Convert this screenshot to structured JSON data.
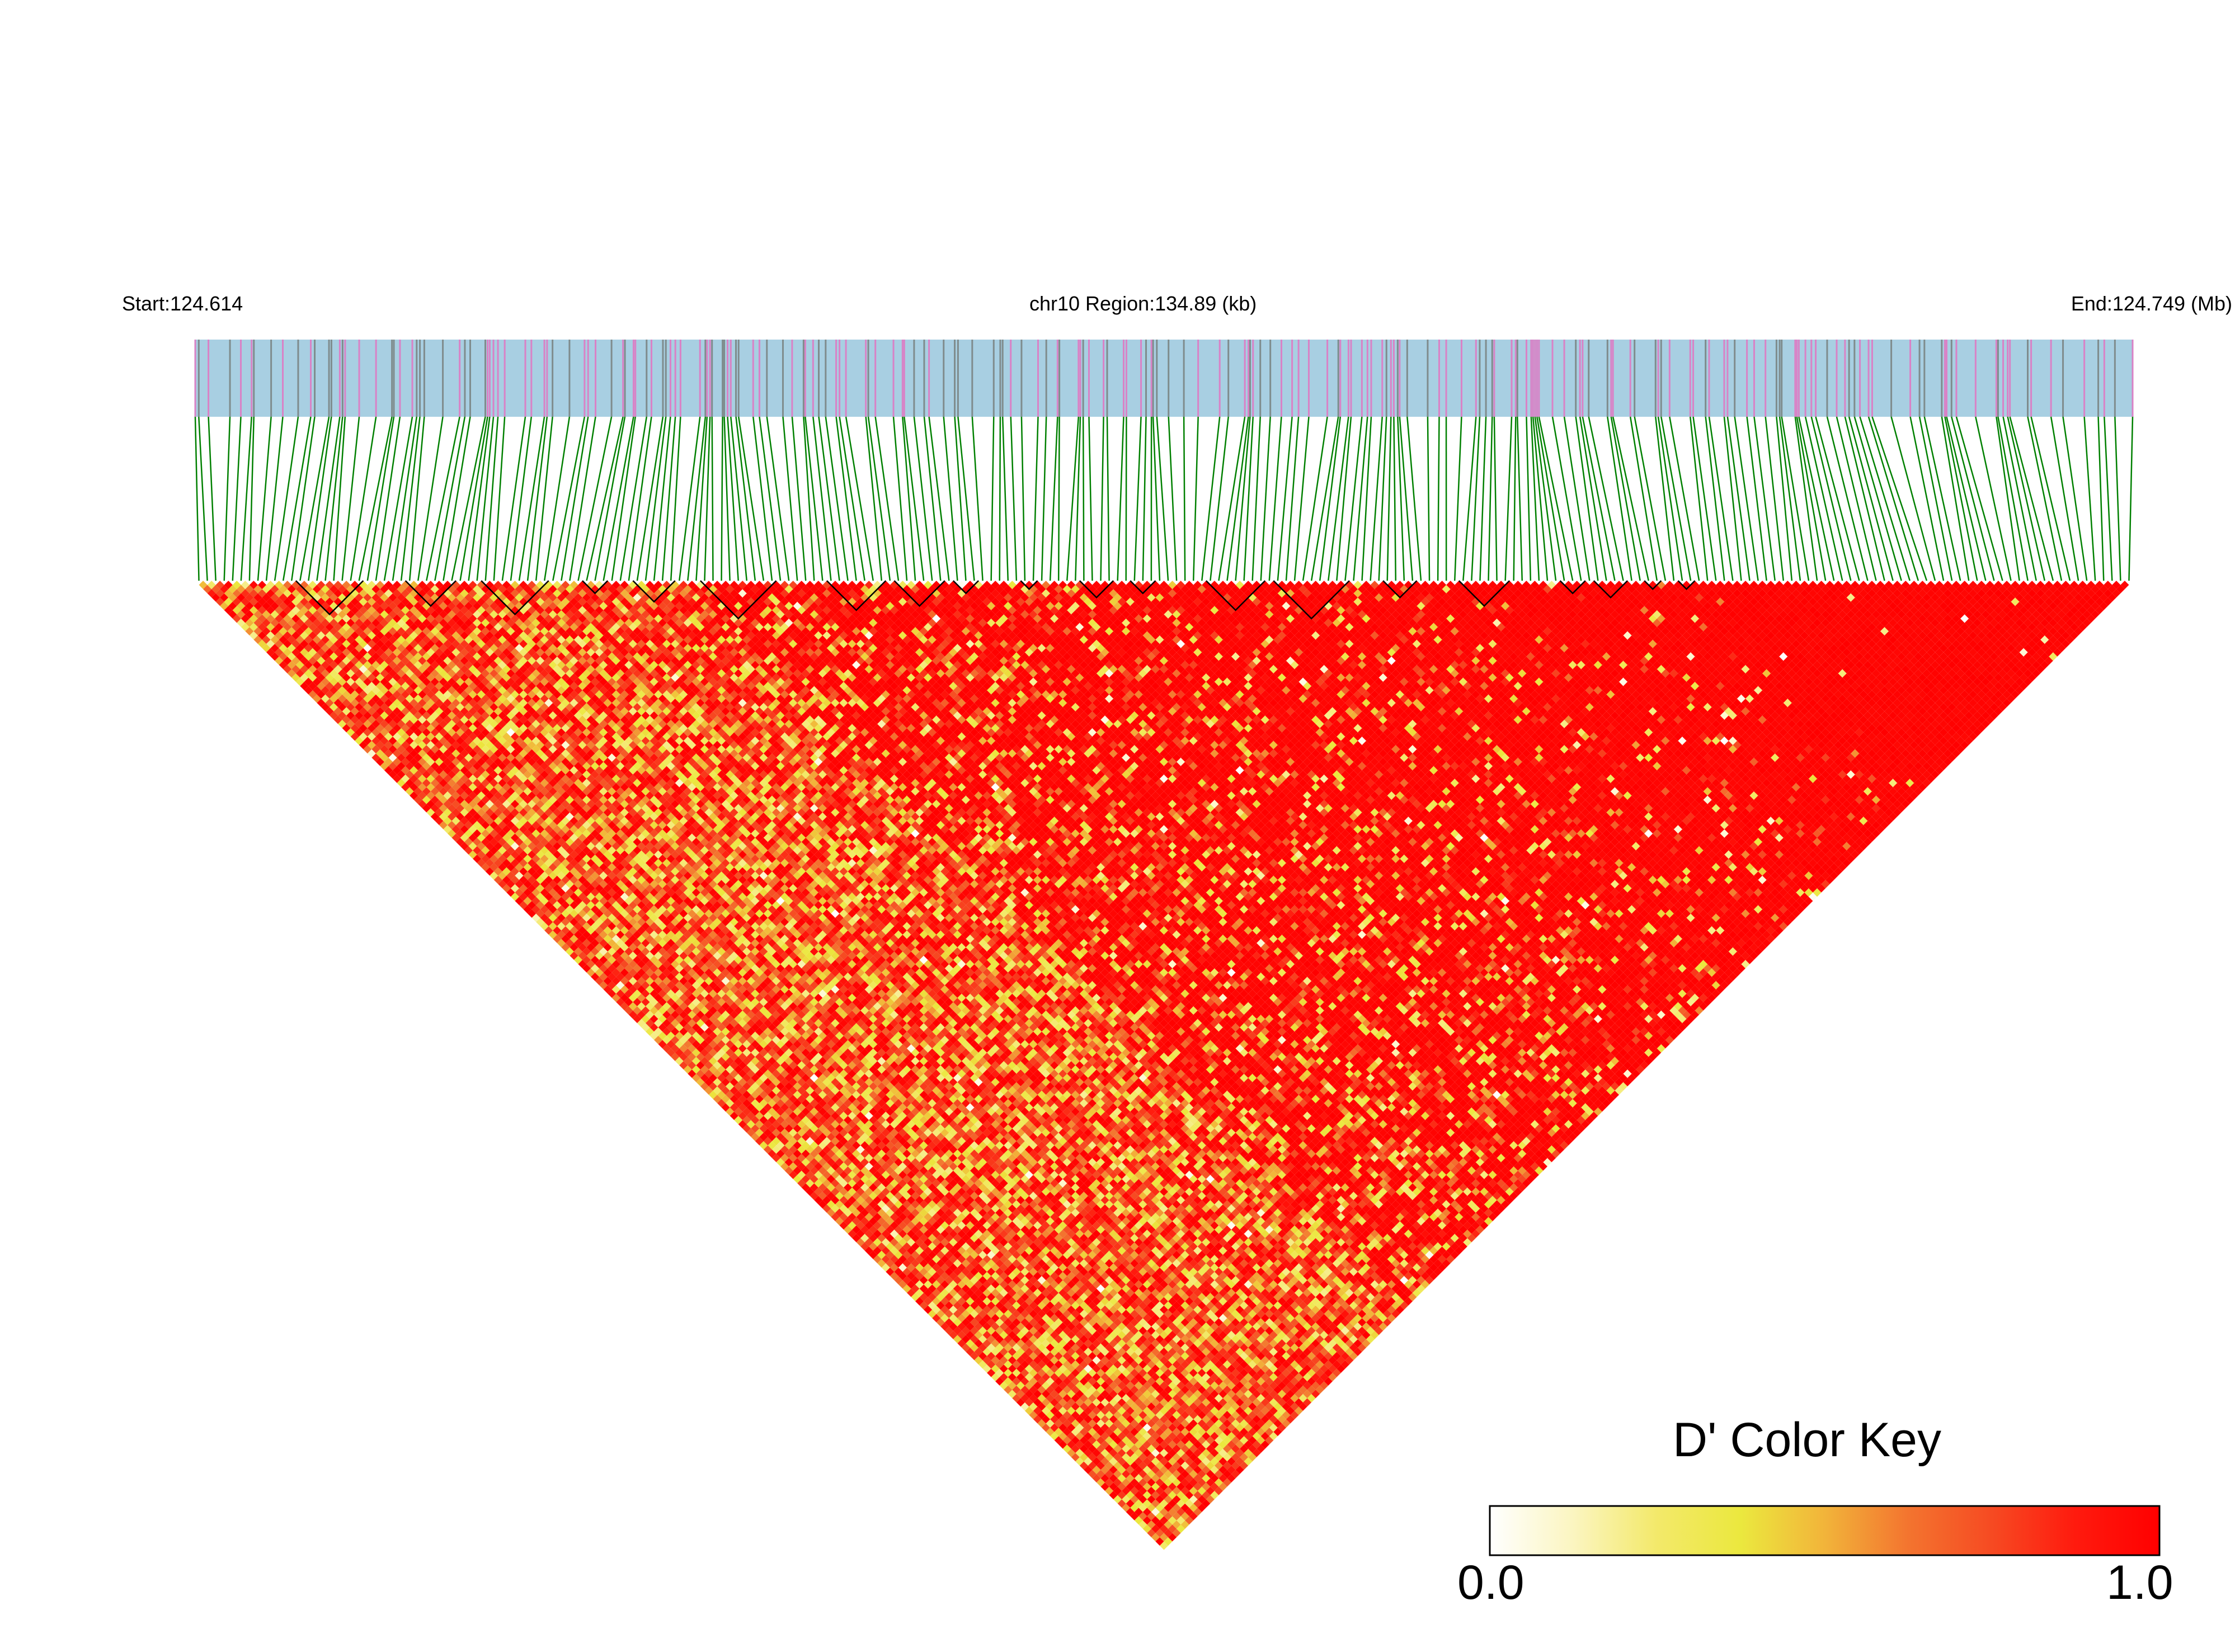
{
  "header": {
    "start_label": "Start:124.614",
    "region_label": "chr10 Region:134.89 (kb)",
    "end_label": "End:124.749 (Mb)"
  },
  "color_key": {
    "title": "D' Color Key",
    "min_label": "0.0",
    "max_label": "1.0",
    "gradient_stops": [
      "#ffffff",
      "#fbf5c0",
      "#f3e96a",
      "#ebe83e",
      "#f2b43a",
      "#f3742f",
      "#f64a22",
      "#ff1a0e",
      "#ff0000"
    ]
  },
  "colors": {
    "track_background": "#a8cfe2",
    "snp_tick_pink": "#d982c6",
    "snp_tick_gray": "#7f8c8d",
    "connector_green": "#008000",
    "high_ld": "#ff0000",
    "block_outline": "#000000"
  },
  "chart_data": {
    "type": "heatmap",
    "description_of_axes": "none",
    "x_range_mb": [
      124.614,
      124.749
    ],
    "region_kb": 134.89,
    "chromosome": "chr10",
    "metric": "D'",
    "value_range": [
      0.0,
      1.0
    ],
    "n_snps": 230,
    "haplotype_blocks_count": 20
  }
}
